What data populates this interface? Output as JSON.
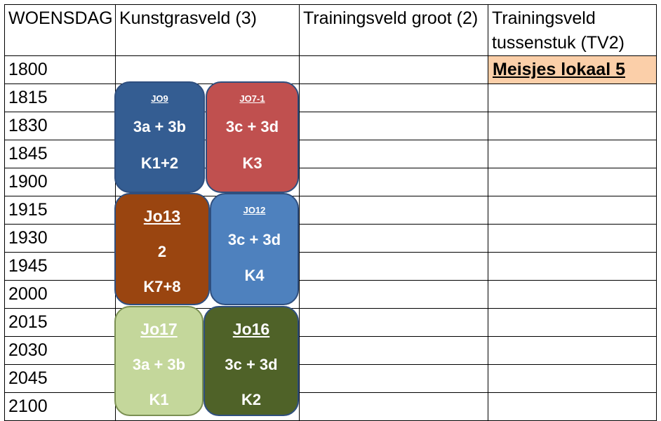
{
  "header": {
    "day": "WOENSDAG",
    "col1": "Kunstgrasveld   (3)",
    "col2": "Trainingsveld groot (2)",
    "col3": "Trainingsveld tussenstuk   (TV2)"
  },
  "times": [
    "1800",
    "1815",
    "1830",
    "1845",
    "1900",
    "1915",
    "1930",
    "1945",
    "2000",
    "2015",
    "2030",
    "2045",
    "2100"
  ],
  "tv2_1800": "Meisjes lokaal 5",
  "blocks": [
    {
      "team": "JO9",
      "fields": "3a + 3b",
      "dressing": "K1+2",
      "color": "#345d92"
    },
    {
      "team": "JO7-1",
      "fields": "3c + 3d",
      "dressing": "K3",
      "color": "#c0504f"
    },
    {
      "team": "Jo13",
      "fields": "2",
      "dressing": "K7+8",
      "color": "#9a4510"
    },
    {
      "team": "JO12",
      "fields": "3c + 3d",
      "dressing": "K4",
      "color": "#4e81be"
    },
    {
      "team": "Jo17",
      "fields": "3a + 3b",
      "dressing": "K1",
      "color": "#c4d79b"
    },
    {
      "team": "Jo16",
      "fields": "3c + 3d",
      "dressing": "K2",
      "color": "#4f6228"
    }
  ]
}
